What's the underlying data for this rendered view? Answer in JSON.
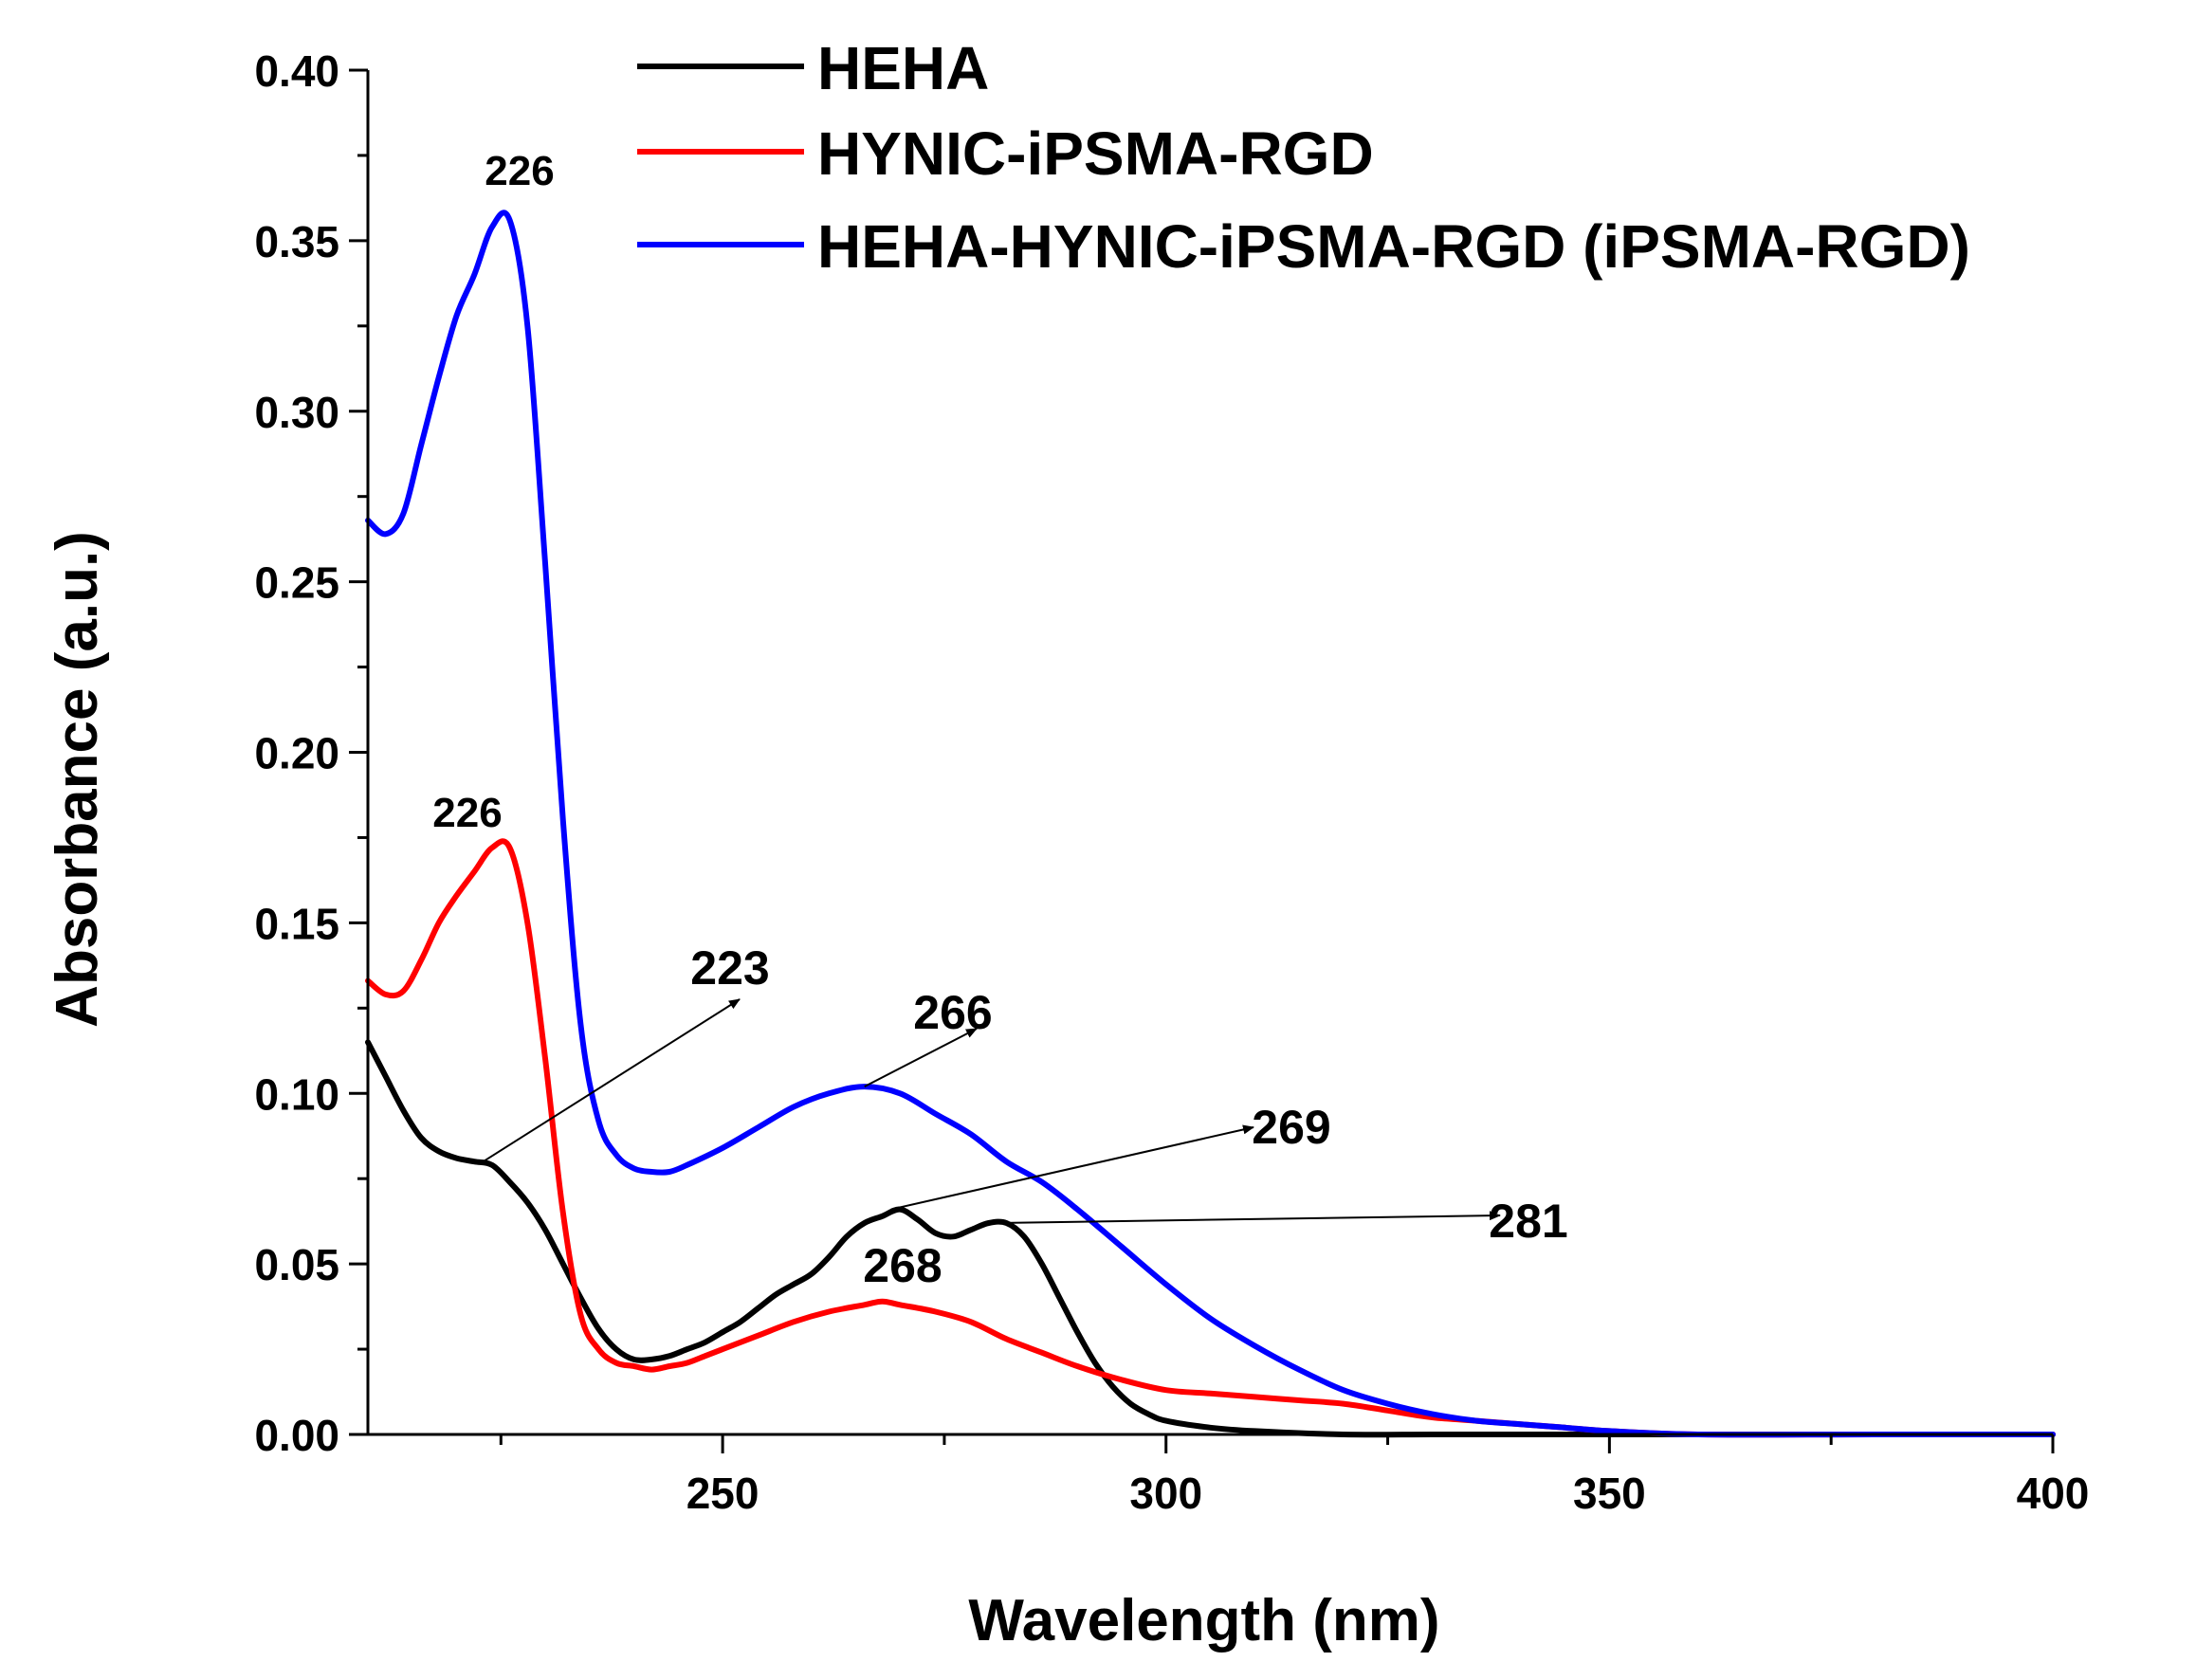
{
  "chart_data": {
    "type": "line",
    "title": "",
    "xlabel": "Wavelength (nm)",
    "ylabel": "Absorbance (a.u.)",
    "xlim": [
      210,
      400
    ],
    "ylim": [
      0.0,
      0.4
    ],
    "x_ticks": [
      250,
      300,
      350,
      400
    ],
    "x_tick_labels": [
      "250",
      "300",
      "350",
      "400"
    ],
    "y_ticks": [
      0.0,
      0.05,
      0.1,
      0.15,
      0.2,
      0.25,
      0.3,
      0.35,
      0.4
    ],
    "y_tick_labels": [
      "0.00",
      "0.05",
      "0.10",
      "0.15",
      "0.20",
      "0.25",
      "0.30",
      "0.35",
      "0.40"
    ],
    "grid": false,
    "legend_position": "top-right",
    "series": [
      {
        "name": "HEHA",
        "color": "#000000",
        "x": [
          210,
          212,
          214,
          216,
          218,
          220,
          222,
          224,
          226,
          228,
          230,
          232,
          234,
          236,
          238,
          240,
          242,
          244,
          246,
          248,
          250,
          252,
          254,
          256,
          258,
          260,
          262,
          264,
          266,
          268,
          270,
          272,
          274,
          276,
          278,
          280,
          282,
          284,
          286,
          288,
          290,
          292,
          294,
          296,
          298,
          300,
          305,
          310,
          320,
          330,
          340,
          350,
          360,
          380,
          400
        ],
        "y": [
          0.115,
          0.105,
          0.095,
          0.087,
          0.083,
          0.081,
          0.08,
          0.079,
          0.074,
          0.068,
          0.06,
          0.05,
          0.04,
          0.031,
          0.025,
          0.022,
          0.022,
          0.023,
          0.025,
          0.027,
          0.03,
          0.033,
          0.037,
          0.041,
          0.044,
          0.047,
          0.052,
          0.058,
          0.062,
          0.064,
          0.066,
          0.063,
          0.059,
          0.058,
          0.06,
          0.062,
          0.062,
          0.058,
          0.05,
          0.04,
          0.03,
          0.021,
          0.014,
          0.009,
          0.006,
          0.004,
          0.002,
          0.001,
          0.0,
          0.0,
          0.0,
          0.0,
          0.0,
          0.0,
          0.0
        ]
      },
      {
        "name": "HYNIC-iPSMA-RGD",
        "color": "#ff0000",
        "x": [
          210,
          212,
          214,
          216,
          218,
          220,
          222,
          224,
          226,
          228,
          230,
          232,
          234,
          236,
          238,
          240,
          242,
          244,
          246,
          248,
          250,
          254,
          258,
          262,
          266,
          268,
          270,
          274,
          278,
          282,
          286,
          290,
          295,
          300,
          305,
          310,
          315,
          320,
          325,
          330,
          335,
          340,
          345,
          350,
          360,
          380,
          400
        ],
        "y": [
          0.133,
          0.129,
          0.13,
          0.139,
          0.15,
          0.158,
          0.165,
          0.172,
          0.172,
          0.15,
          0.11,
          0.065,
          0.035,
          0.025,
          0.021,
          0.02,
          0.019,
          0.02,
          0.021,
          0.023,
          0.025,
          0.029,
          0.033,
          0.036,
          0.038,
          0.039,
          0.038,
          0.036,
          0.033,
          0.028,
          0.024,
          0.02,
          0.016,
          0.013,
          0.012,
          0.011,
          0.01,
          0.009,
          0.007,
          0.005,
          0.004,
          0.003,
          0.002,
          0.001,
          0.0,
          0.0,
          0.0
        ]
      },
      {
        "name": "HEHA-HYNIC-iPSMA-RGD (iPSMA-RGD)",
        "color": "#0000ff",
        "x": [
          210,
          212,
          214,
          216,
          218,
          220,
          222,
          224,
          226,
          228,
          230,
          232,
          234,
          236,
          238,
          240,
          242,
          244,
          246,
          250,
          254,
          258,
          262,
          266,
          270,
          274,
          278,
          282,
          286,
          290,
          295,
          300,
          305,
          310,
          315,
          320,
          325,
          330,
          335,
          340,
          345,
          350,
          360,
          380,
          400
        ],
        "y": [
          0.268,
          0.264,
          0.27,
          0.29,
          0.31,
          0.328,
          0.34,
          0.354,
          0.356,
          0.325,
          0.255,
          0.18,
          0.12,
          0.092,
          0.082,
          0.078,
          0.077,
          0.077,
          0.079,
          0.084,
          0.09,
          0.096,
          0.1,
          0.102,
          0.1,
          0.094,
          0.088,
          0.08,
          0.074,
          0.066,
          0.055,
          0.044,
          0.034,
          0.026,
          0.019,
          0.013,
          0.009,
          0.006,
          0.004,
          0.003,
          0.002,
          0.001,
          0.0,
          0.0,
          0.0
        ]
      }
    ],
    "annotations": [
      {
        "text": "226",
        "series": "HEHA-HYNIC-iPSMA-RGD (iPSMA-RGD)",
        "x": 226,
        "y": 0.356,
        "arrow": false
      },
      {
        "text": "226",
        "series": "HYNIC-iPSMA-RGD",
        "x": 226,
        "y": 0.172,
        "arrow": false
      },
      {
        "text": "223",
        "series": "HEHA",
        "x": 223,
        "y": 0.08,
        "arrow": true
      },
      {
        "text": "266",
        "series": "HEHA-HYNIC-iPSMA-RGD (iPSMA-RGD)",
        "x": 266,
        "y": 0.102,
        "arrow": true
      },
      {
        "text": "269",
        "series": "HEHA",
        "x": 269,
        "y": 0.066,
        "arrow": true
      },
      {
        "text": "281",
        "series": "HEHA",
        "x": 281,
        "y": 0.062,
        "arrow": true
      },
      {
        "text": "268",
        "series": "HYNIC-iPSMA-RGD",
        "x": 268,
        "y": 0.039,
        "arrow": false
      }
    ]
  }
}
